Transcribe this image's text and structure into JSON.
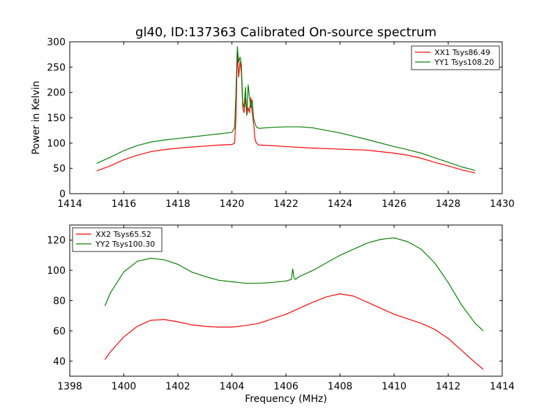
{
  "figure": {
    "title": "gl40, ID:137363 Calibrated On-source spectrum",
    "xlabel": "Frequency (MHz)"
  },
  "chart_data": [
    {
      "type": "line",
      "ylabel": "Power in Kelvin",
      "xlim": [
        1414,
        1430
      ],
      "ylim": [
        0,
        300
      ],
      "xticks": [
        1414,
        1416,
        1418,
        1420,
        1422,
        1424,
        1426,
        1428,
        1430
      ],
      "yticks": [
        0,
        50,
        100,
        150,
        200,
        250,
        300
      ],
      "grid": false,
      "legend_position": "top-right",
      "series": [
        {
          "name": "XX1 Tsys86.49",
          "color": "#ff0000",
          "x": [
            1415.0,
            1415.5,
            1416.0,
            1416.5,
            1417.0,
            1417.5,
            1418.0,
            1418.5,
            1419.0,
            1419.5,
            1420.0,
            1420.1,
            1420.15,
            1420.2,
            1420.25,
            1420.3,
            1420.35,
            1420.4,
            1420.45,
            1420.5,
            1420.55,
            1420.6,
            1420.65,
            1420.7,
            1420.75,
            1420.8,
            1420.85,
            1420.9,
            1421.0,
            1421.5,
            1422.0,
            1423.0,
            1424.0,
            1425.0,
            1426.0,
            1426.5,
            1427.0,
            1427.5,
            1428.0,
            1428.5,
            1429.0
          ],
          "y": [
            45,
            55,
            67,
            76,
            83,
            87,
            90,
            92,
            94,
            96,
            97,
            100,
            150,
            280,
            230,
            260,
            240,
            170,
            160,
            190,
            155,
            170,
            160,
            190,
            160,
            140,
            110,
            100,
            96,
            95,
            93,
            90,
            88,
            86,
            80,
            76,
            70,
            62,
            55,
            47,
            41
          ]
        },
        {
          "name": "YY1 Tsys108.20",
          "color": "#008000",
          "x": [
            1415.0,
            1415.5,
            1416.0,
            1416.5,
            1417.0,
            1417.5,
            1418.0,
            1418.5,
            1419.0,
            1419.5,
            1420.0,
            1420.1,
            1420.15,
            1420.2,
            1420.25,
            1420.3,
            1420.35,
            1420.4,
            1420.45,
            1420.5,
            1420.55,
            1420.6,
            1420.65,
            1420.7,
            1420.75,
            1420.8,
            1420.85,
            1420.9,
            1421.0,
            1421.5,
            1422.0,
            1422.5,
            1423.0,
            1424.0,
            1425.0,
            1426.0,
            1426.5,
            1427.0,
            1427.5,
            1428.0,
            1428.5,
            1429.0
          ],
          "y": [
            60,
            72,
            85,
            95,
            102,
            106,
            109,
            112,
            115,
            118,
            121,
            130,
            200,
            290,
            260,
            270,
            255,
            180,
            170,
            210,
            155,
            215,
            190,
            170,
            185,
            150,
            140,
            132,
            129,
            131,
            132,
            132,
            130,
            120,
            107,
            93,
            87,
            80,
            71,
            62,
            53,
            46
          ]
        }
      ]
    },
    {
      "type": "line",
      "ylabel": "",
      "xlim": [
        1398,
        1414
      ],
      "ylim": [
        30,
        130
      ],
      "xticks": [
        1398,
        1400,
        1402,
        1404,
        1406,
        1408,
        1410,
        1412,
        1414
      ],
      "yticks": [
        40,
        60,
        80,
        100,
        120
      ],
      "grid": false,
      "legend_position": "top-left",
      "series": [
        {
          "name": "XX2 Tsys65.52",
          "color": "#ff0000",
          "x": [
            1399.3,
            1399.5,
            1400.0,
            1400.5,
            1401.0,
            1401.5,
            1402.0,
            1402.5,
            1403.0,
            1403.5,
            1404.0,
            1404.5,
            1405.0,
            1405.5,
            1406.0,
            1406.5,
            1407.0,
            1407.5,
            1408.0,
            1408.5,
            1409.0,
            1409.5,
            1410.0,
            1410.5,
            1411.0,
            1411.5,
            1412.0,
            1412.5,
            1413.0,
            1413.3
          ],
          "y": [
            41,
            46,
            56,
            63,
            67,
            67.5,
            66,
            64,
            63,
            62.5,
            62.5,
            63.5,
            65,
            68,
            71,
            75,
            79,
            82.5,
            84.5,
            83,
            79,
            75,
            71,
            68,
            65,
            61,
            55,
            47,
            39,
            34.5
          ]
        },
        {
          "name": "YY2 Tsys100.30",
          "color": "#008000",
          "x": [
            1399.3,
            1399.5,
            1400.0,
            1400.5,
            1401.0,
            1401.5,
            1402.0,
            1402.5,
            1403.0,
            1403.5,
            1404.0,
            1404.5,
            1405.0,
            1405.5,
            1406.0,
            1406.2,
            1406.25,
            1406.3,
            1406.35,
            1406.5,
            1407.0,
            1407.5,
            1408.0,
            1408.5,
            1409.0,
            1409.5,
            1410.0,
            1410.5,
            1411.0,
            1411.5,
            1412.0,
            1412.5,
            1413.0,
            1413.3
          ],
          "y": [
            76.5,
            85,
            99,
            106,
            108,
            107,
            104,
            99,
            96,
            93.5,
            92.5,
            91.5,
            91.5,
            92,
            93,
            94,
            101,
            95,
            94,
            96,
            100,
            105,
            110,
            114,
            118,
            120.5,
            121.5,
            119,
            114,
            105,
            92,
            77,
            65,
            60
          ]
        }
      ]
    }
  ]
}
